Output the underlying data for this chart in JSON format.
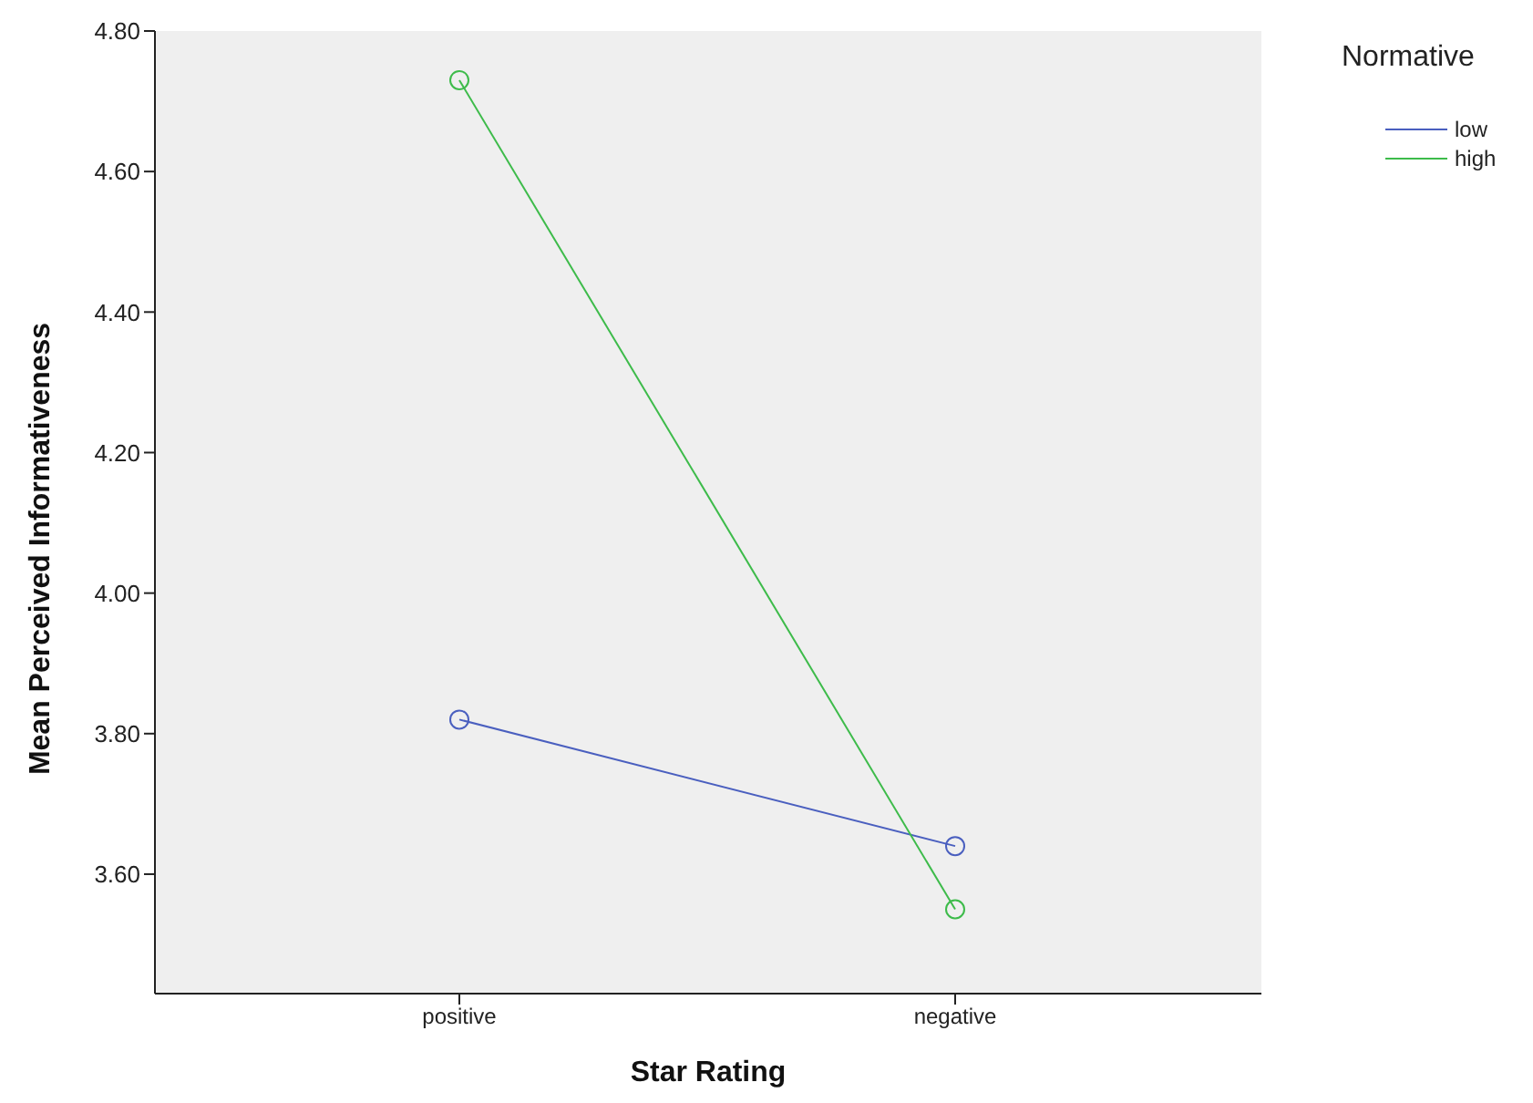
{
  "chart_data": {
    "type": "line",
    "xlabel": "Star Rating",
    "ylabel": "Mean Perceived Informativeness",
    "legend_title": "Normative",
    "categories": [
      "positive",
      "negative"
    ],
    "series": [
      {
        "name": "low",
        "color": "#4a5fbf",
        "values": [
          3.82,
          3.64
        ]
      },
      {
        "name": "high",
        "color": "#3dbb4a",
        "values": [
          4.73,
          3.55
        ]
      }
    ],
    "ylim": [
      3.43,
      4.8
    ],
    "yticks": [
      {
        "value": 3.6,
        "label": "3.60"
      },
      {
        "value": 3.8,
        "label": "3.80"
      },
      {
        "value": 4.0,
        "label": "4.00"
      },
      {
        "value": 4.2,
        "label": "4.20"
      },
      {
        "value": 4.4,
        "label": "4.40"
      },
      {
        "value": 4.6,
        "label": "4.60"
      },
      {
        "value": 4.8,
        "label": "4.80"
      }
    ],
    "grid": false,
    "legend": "top right",
    "marker": "circle",
    "line_style": "solid"
  }
}
